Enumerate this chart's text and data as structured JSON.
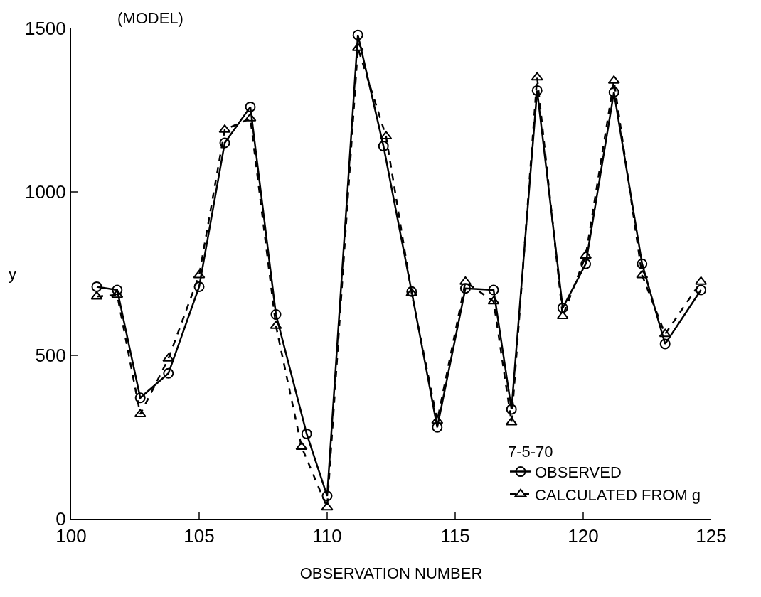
{
  "chart_data": {
    "type": "line",
    "xlabel": "OBSERVATION NUMBER",
    "ylabel": "y",
    "legend_title": "7-5-70",
    "annotations": [
      "(MODEL)"
    ],
    "xlim": [
      100,
      125
    ],
    "xticks": [
      100,
      105,
      110,
      115,
      120,
      125
    ],
    "ylim": [
      0,
      1500
    ],
    "yticks": [
      0,
      500,
      1000,
      1500
    ],
    "grid": false,
    "legend": "bottom right",
    "series": [
      {
        "name": "OBSERVED",
        "color": "#000000",
        "marker": "circle",
        "line_style": "solid",
        "x": [
          101.0,
          101.8,
          102.7,
          103.8,
          105.0,
          106.0,
          107.0,
          108.0,
          109.2,
          110.0,
          111.2,
          112.2,
          113.3,
          114.3,
          115.4,
          116.5,
          117.2,
          118.2,
          119.2,
          120.1,
          121.2,
          122.3,
          123.2,
          124.6
        ],
        "values": [
          710,
          700,
          370,
          445,
          710,
          1150,
          1260,
          625,
          260,
          70,
          1480,
          1140,
          695,
          280,
          705,
          700,
          335,
          1310,
          645,
          780,
          1305,
          780,
          535,
          700
        ]
      },
      {
        "name": "CALCULATED FROM g",
        "color": "#000000",
        "marker": "triangle",
        "line_style": "dashed",
        "x": [
          101.0,
          101.8,
          102.7,
          103.8,
          105.0,
          106.0,
          107.0,
          108.0,
          109.0,
          110.0,
          111.2,
          112.3,
          113.3,
          114.3,
          115.4,
          116.5,
          117.2,
          118.2,
          119.2,
          120.1,
          121.2,
          122.3,
          123.2,
          124.6
        ],
        "values": [
          680,
          685,
          320,
          490,
          745,
          1190,
          1225,
          590,
          220,
          35,
          1440,
          1170,
          690,
          300,
          725,
          665,
          295,
          1350,
          620,
          805,
          1340,
          745,
          565,
          725
        ]
      }
    ]
  }
}
